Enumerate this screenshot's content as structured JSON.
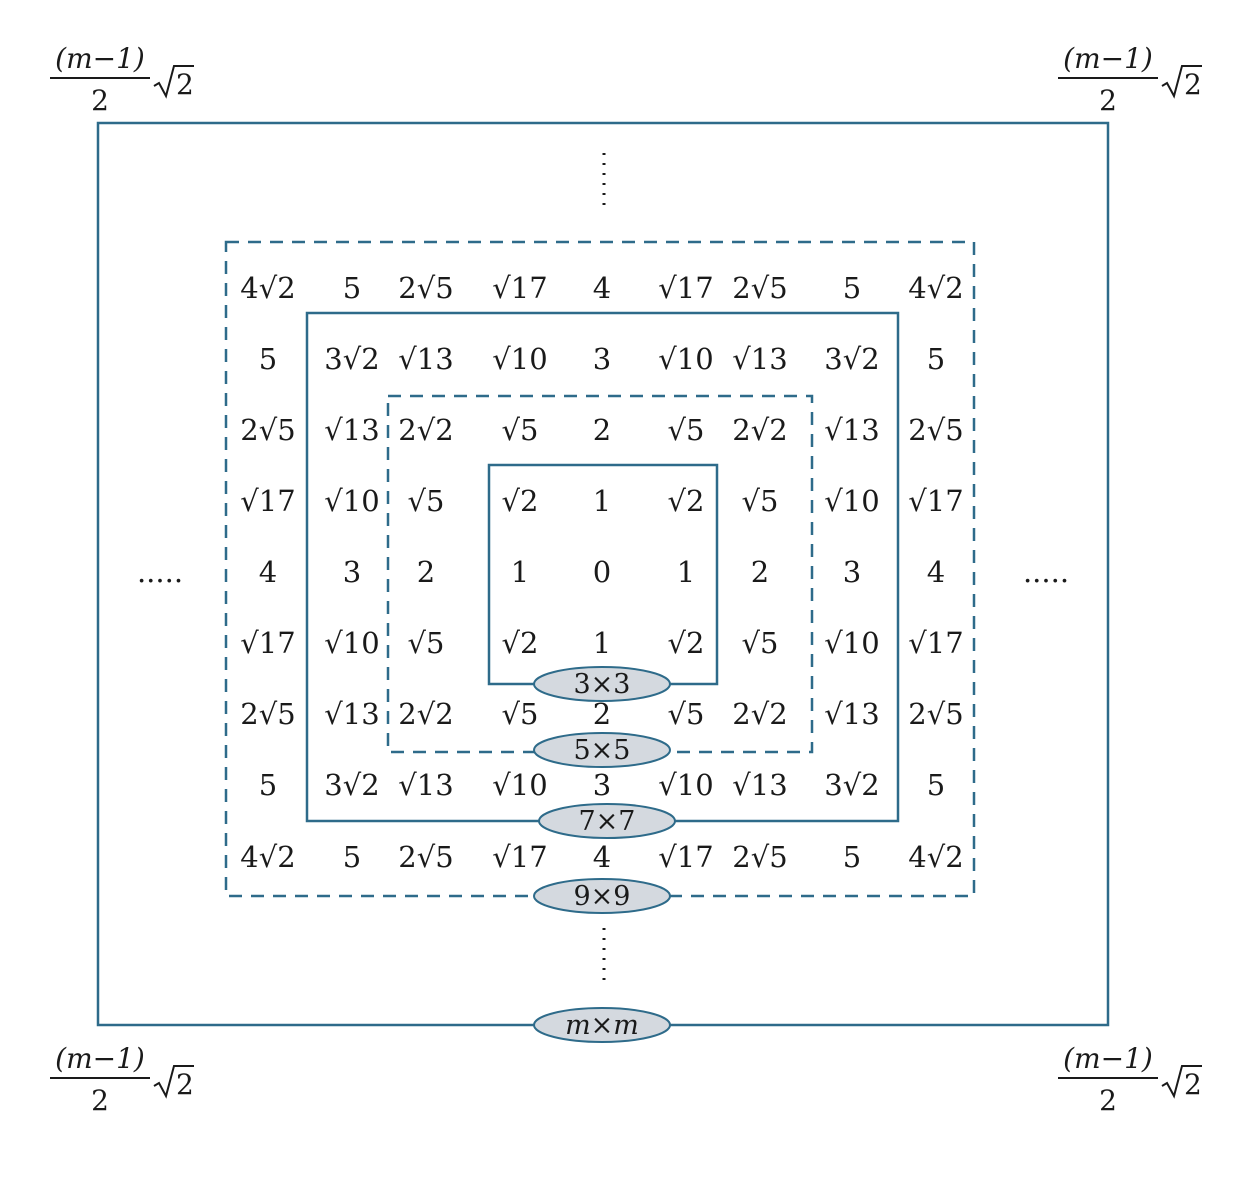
{
  "colors": {
    "frame": "#2e6b8a",
    "label_fill": "#d4d9df",
    "text": "#1a1a1a"
  },
  "corner_label": {
    "numerator": "(m−1)",
    "denominator": "2",
    "radicand": "2"
  },
  "ellipsis_horizontal": ".....",
  "layer_labels": [
    "3×3",
    "5×5",
    "7×7",
    "9×9",
    "m×m"
  ],
  "grid": [
    [
      "4√2",
      "5",
      "2√5",
      "√17",
      "4",
      "√17",
      "2√5",
      "5",
      "4√2"
    ],
    [
      "5",
      "3√2",
      "√13",
      "√10",
      "3",
      "√10",
      "√13",
      "3√2",
      "5"
    ],
    [
      "2√5",
      "√13",
      "2√2",
      "√5",
      "2",
      "√5",
      "2√2",
      "√13",
      "2√5"
    ],
    [
      "√17",
      "√10",
      "√5",
      "√2",
      "1",
      "√2",
      "√5",
      "√10",
      "√17"
    ],
    [
      "4",
      "3",
      "2",
      "1",
      "0",
      "1",
      "2",
      "3",
      "4"
    ],
    [
      "√17",
      "√10",
      "√5",
      "√2",
      "1",
      "√2",
      "√5",
      "√10",
      "√17"
    ],
    [
      "2√5",
      "√13",
      "2√2",
      "√5",
      "2",
      "√5",
      "2√2",
      "√13",
      "2√5"
    ],
    [
      "5",
      "3√2",
      "√13",
      "√10",
      "3",
      "√10",
      "√13",
      "3√2",
      "5"
    ],
    [
      "4√2",
      "5",
      "2√5",
      "√17",
      "4",
      "√17",
      "2√5",
      "5",
      "4√2"
    ]
  ]
}
